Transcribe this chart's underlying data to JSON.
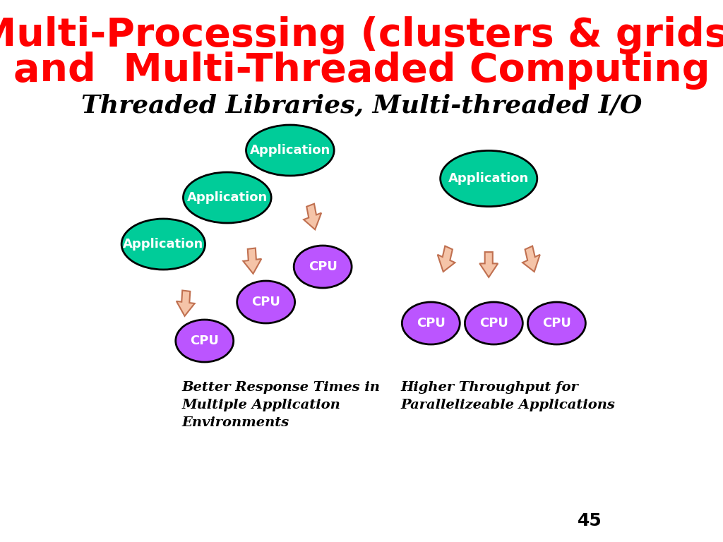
{
  "title_line1": "Multi-Processing (clusters & grids)",
  "title_line2": "and  Multi-Threaded Computing",
  "title_color": "#FF0000",
  "title_fontsize": 40,
  "subtitle": "Threaded Libraries, Multi-threaded I/O",
  "subtitle_fontsize": 26,
  "app_color": "#00CC99",
  "cpu_color": "#BB55FF",
  "arrow_facecolor": "#F5C4A8",
  "arrow_edgecolor": "#C07050",
  "text_color_white": "#FFFFFF",
  "text_color_black": "#000000",
  "label_text": "Application",
  "cpu_text": "CPU",
  "bottom_left_text": "Better Response Times in\nMultiple Application\nEnvironments",
  "bottom_right_text": "Higher Throughput for\nParallelizeable Applications",
  "page_number": "45",
  "background_color": "#FFFFFF",
  "ellipse_edgecolor": "#000000",
  "ellipse_lw": 2.0
}
